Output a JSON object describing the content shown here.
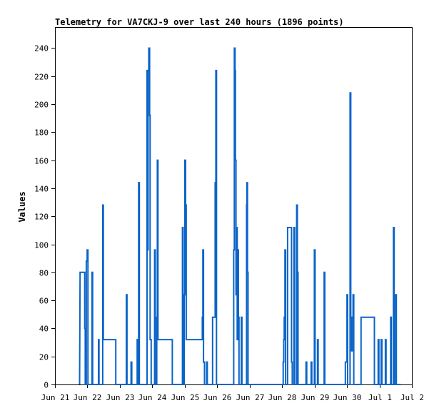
{
  "chart_data": {
    "type": "line",
    "step": true,
    "title": "Telemetry for VA7CKJ-9 over last 240 hours (1896 points)",
    "ylabel": "Values",
    "xlabel": "",
    "ylim": [
      0,
      255
    ],
    "xlim": [
      0,
      264
    ],
    "x_unit": "hours since Jun 21 00:00",
    "grid": false,
    "legend": "none",
    "color": "#0a64c8",
    "y_ticks": [
      0,
      20,
      40,
      60,
      80,
      100,
      120,
      140,
      160,
      180,
      200,
      220,
      240
    ],
    "x_ticks": [
      {
        "x": 0,
        "label": "Jun 21"
      },
      {
        "x": 24,
        "label": "Jun 22"
      },
      {
        "x": 48,
        "label": "Jun 23"
      },
      {
        "x": 72,
        "label": "Jun 24"
      },
      {
        "x": 96,
        "label": "Jun 25"
      },
      {
        "x": 120,
        "label": "Jun 26"
      },
      {
        "x": 144,
        "label": "Jun 27"
      },
      {
        "x": 168,
        "label": "Jun 28"
      },
      {
        "x": 192,
        "label": "Jun 29"
      },
      {
        "x": 216,
        "label": "Jun 30"
      },
      {
        "x": 240,
        "label": "Jul 1"
      },
      {
        "x": 264,
        "label": "Jul 2"
      }
    ],
    "points": [
      [
        18.2,
        0
      ],
      [
        18.6,
        80
      ],
      [
        22.0,
        80
      ],
      [
        22.0,
        40
      ],
      [
        22.4,
        40
      ],
      [
        22.4,
        0
      ],
      [
        23.2,
        0
      ],
      [
        23.2,
        88
      ],
      [
        23.8,
        88
      ],
      [
        23.8,
        96
      ],
      [
        24.4,
        96
      ],
      [
        24.4,
        0
      ],
      [
        27.4,
        0
      ],
      [
        27.4,
        80
      ],
      [
        27.9,
        80
      ],
      [
        27.9,
        0
      ],
      [
        32.2,
        0
      ],
      [
        32.2,
        32
      ],
      [
        32.6,
        32
      ],
      [
        32.6,
        0
      ],
      [
        35.3,
        0
      ],
      [
        35.3,
        128
      ],
      [
        35.8,
        128
      ],
      [
        35.8,
        32
      ],
      [
        45.0,
        32
      ],
      [
        45.0,
        0
      ],
      [
        52.8,
        0
      ],
      [
        52.8,
        64
      ],
      [
        53.3,
        64
      ],
      [
        53.3,
        0
      ],
      [
        56.3,
        0
      ],
      [
        56.3,
        16
      ],
      [
        56.8,
        16
      ],
      [
        56.8,
        0
      ],
      [
        60.8,
        0
      ],
      [
        60.8,
        32
      ],
      [
        61.3,
        32
      ],
      [
        61.3,
        0
      ],
      [
        61.9,
        0
      ],
      [
        61.9,
        144
      ],
      [
        62.4,
        144
      ],
      [
        62.4,
        0
      ],
      [
        68.1,
        0
      ],
      [
        68.1,
        224
      ],
      [
        68.6,
        224
      ],
      [
        68.6,
        96
      ],
      [
        68.9,
        96
      ],
      [
        68.9,
        224
      ],
      [
        69.4,
        224
      ],
      [
        69.4,
        240
      ],
      [
        70.0,
        240
      ],
      [
        70.0,
        192
      ],
      [
        70.4,
        192
      ],
      [
        70.4,
        32
      ],
      [
        71.2,
        32
      ],
      [
        71.2,
        0
      ],
      [
        73.7,
        0
      ],
      [
        73.7,
        96
      ],
      [
        74.2,
        96
      ],
      [
        74.2,
        0
      ],
      [
        75.3,
        0
      ],
      [
        75.3,
        48
      ],
      [
        75.7,
        48
      ],
      [
        75.7,
        160
      ],
      [
        76.2,
        160
      ],
      [
        76.2,
        32
      ],
      [
        86.8,
        32
      ],
      [
        86.8,
        0
      ],
      [
        94.3,
        0
      ],
      [
        94.3,
        112
      ],
      [
        94.8,
        112
      ],
      [
        94.8,
        0
      ],
      [
        95.6,
        0
      ],
      [
        95.6,
        64
      ],
      [
        96.1,
        64
      ],
      [
        96.1,
        160
      ],
      [
        96.6,
        160
      ],
      [
        96.6,
        128
      ],
      [
        97.1,
        128
      ],
      [
        97.1,
        32
      ],
      [
        109.0,
        32
      ],
      [
        109.0,
        48
      ],
      [
        109.4,
        48
      ],
      [
        109.4,
        96
      ],
      [
        109.9,
        96
      ],
      [
        109.9,
        16
      ],
      [
        110.6,
        16
      ],
      [
        110.6,
        0
      ],
      [
        112.2,
        0
      ],
      [
        112.2,
        16
      ],
      [
        112.7,
        16
      ],
      [
        112.7,
        0
      ],
      [
        116.6,
        0
      ],
      [
        116.6,
        48
      ],
      [
        118.5,
        48
      ],
      [
        118.5,
        144
      ],
      [
        119.0,
        144
      ],
      [
        119.0,
        224
      ],
      [
        119.5,
        224
      ],
      [
        119.5,
        0
      ],
      [
        132.2,
        0
      ],
      [
        132.2,
        96
      ],
      [
        132.7,
        96
      ],
      [
        132.7,
        240
      ],
      [
        133.2,
        240
      ],
      [
        133.2,
        224
      ],
      [
        133.5,
        224
      ],
      [
        133.5,
        160
      ],
      [
        133.9,
        160
      ],
      [
        133.9,
        64
      ],
      [
        134.3,
        64
      ],
      [
        134.3,
        112
      ],
      [
        134.8,
        112
      ],
      [
        134.8,
        32
      ],
      [
        135.3,
        32
      ],
      [
        135.3,
        96
      ],
      [
        135.7,
        96
      ],
      [
        135.7,
        48
      ],
      [
        136.1,
        48
      ],
      [
        136.1,
        0
      ],
      [
        137.8,
        0
      ],
      [
        137.8,
        48
      ],
      [
        138.3,
        48
      ],
      [
        138.3,
        0
      ],
      [
        141.7,
        0
      ],
      [
        141.7,
        128
      ],
      [
        142.0,
        128
      ],
      [
        142.0,
        144
      ],
      [
        142.4,
        144
      ],
      [
        142.4,
        80
      ],
      [
        142.8,
        80
      ],
      [
        142.8,
        0
      ],
      [
        168.8,
        0
      ],
      [
        168.8,
        16
      ],
      [
        169.2,
        16
      ],
      [
        169.2,
        32
      ],
      [
        169.6,
        32
      ],
      [
        169.6,
        48
      ],
      [
        170.1,
        48
      ],
      [
        170.1,
        96
      ],
      [
        170.6,
        96
      ],
      [
        170.6,
        0
      ],
      [
        172.1,
        0
      ],
      [
        172.1,
        112
      ],
      [
        175.0,
        112
      ],
      [
        175.0,
        16
      ],
      [
        175.5,
        16
      ],
      [
        175.5,
        0
      ],
      [
        176.8,
        0
      ],
      [
        176.8,
        112
      ],
      [
        177.3,
        112
      ],
      [
        177.3,
        0
      ],
      [
        178.8,
        0
      ],
      [
        178.8,
        128
      ],
      [
        179.3,
        128
      ],
      [
        179.3,
        80
      ],
      [
        179.8,
        80
      ],
      [
        179.8,
        0
      ],
      [
        185.7,
        0
      ],
      [
        185.7,
        16
      ],
      [
        186.2,
        16
      ],
      [
        186.2,
        0
      ],
      [
        189.5,
        0
      ],
      [
        189.5,
        16
      ],
      [
        190.0,
        16
      ],
      [
        190.0,
        0
      ],
      [
        191.9,
        0
      ],
      [
        191.9,
        96
      ],
      [
        192.4,
        96
      ],
      [
        192.4,
        0
      ],
      [
        194.2,
        0
      ],
      [
        194.2,
        32
      ],
      [
        194.7,
        32
      ],
      [
        194.7,
        0
      ],
      [
        199.1,
        0
      ],
      [
        199.1,
        80
      ],
      [
        199.6,
        80
      ],
      [
        199.6,
        0
      ],
      [
        214.8,
        0
      ],
      [
        214.8,
        16
      ],
      [
        216.0,
        16
      ],
      [
        216.0,
        64
      ],
      [
        216.5,
        64
      ],
      [
        216.5,
        0
      ],
      [
        218.3,
        0
      ],
      [
        218.3,
        208
      ],
      [
        218.8,
        208
      ],
      [
        218.8,
        48
      ],
      [
        219.4,
        48
      ],
      [
        219.4,
        24
      ],
      [
        219.9,
        24
      ],
      [
        219.9,
        48
      ],
      [
        220.5,
        48
      ],
      [
        220.5,
        64
      ],
      [
        221.0,
        64
      ],
      [
        221.0,
        0
      ],
      [
        226.4,
        0
      ],
      [
        226.4,
        48
      ],
      [
        236.3,
        48
      ],
      [
        236.3,
        0
      ],
      [
        239.1,
        0
      ],
      [
        239.1,
        32
      ],
      [
        239.6,
        32
      ],
      [
        239.6,
        0
      ],
      [
        241.3,
        0
      ],
      [
        241.3,
        32
      ],
      [
        241.8,
        32
      ],
      [
        241.8,
        0
      ],
      [
        244.4,
        0
      ],
      [
        244.4,
        32
      ],
      [
        244.9,
        32
      ],
      [
        244.9,
        0
      ],
      [
        248.3,
        0
      ],
      [
        248.3,
        48
      ],
      [
        248.8,
        48
      ],
      [
        248.8,
        0
      ],
      [
        250.4,
        0
      ],
      [
        250.4,
        112
      ],
      [
        250.9,
        112
      ],
      [
        250.9,
        0
      ],
      [
        252.0,
        0
      ],
      [
        252.0,
        64
      ],
      [
        252.5,
        64
      ],
      [
        252.5,
        0
      ],
      [
        255.8,
        0
      ]
    ]
  }
}
